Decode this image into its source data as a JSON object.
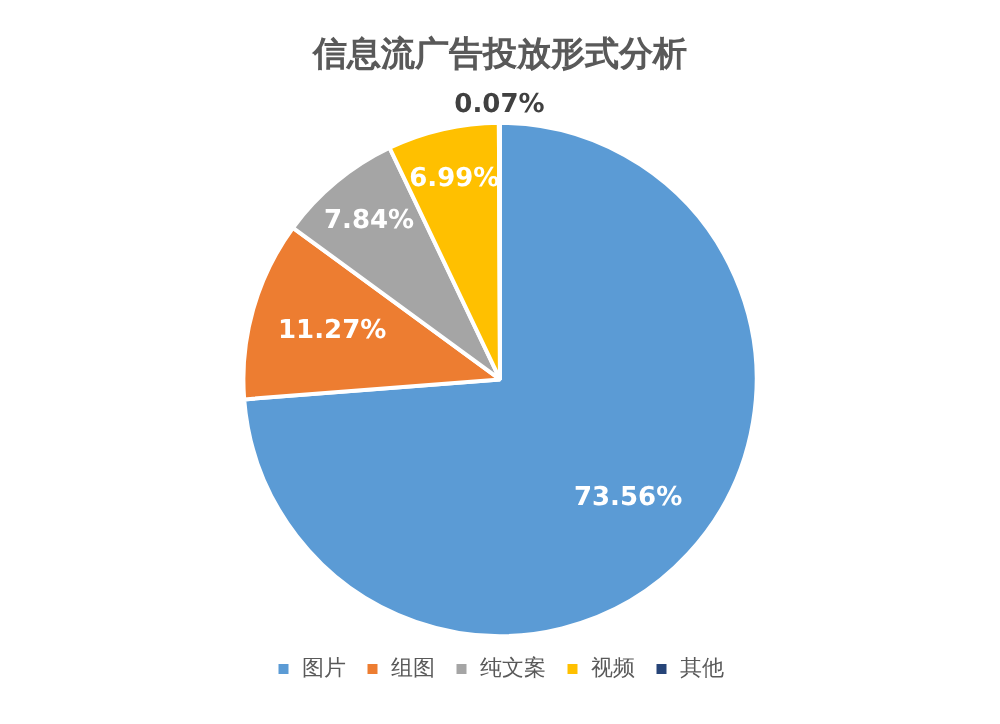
{
  "chart_data": {
    "type": "pie",
    "title": "信息流广告投放形式分析",
    "categories": [
      "图片",
      "组图",
      "纯文案",
      "视频",
      "其他"
    ],
    "values": [
      73.56,
      11.27,
      7.84,
      6.99,
      0.07
    ],
    "value_labels": [
      "73.56%",
      "11.27%",
      "7.84%",
      "6.99%",
      "0.07%"
    ],
    "colors": [
      "#5b9bd5",
      "#ed7d31",
      "#a5a5a5",
      "#ffc000",
      "#264478"
    ],
    "legend": "bottom"
  }
}
